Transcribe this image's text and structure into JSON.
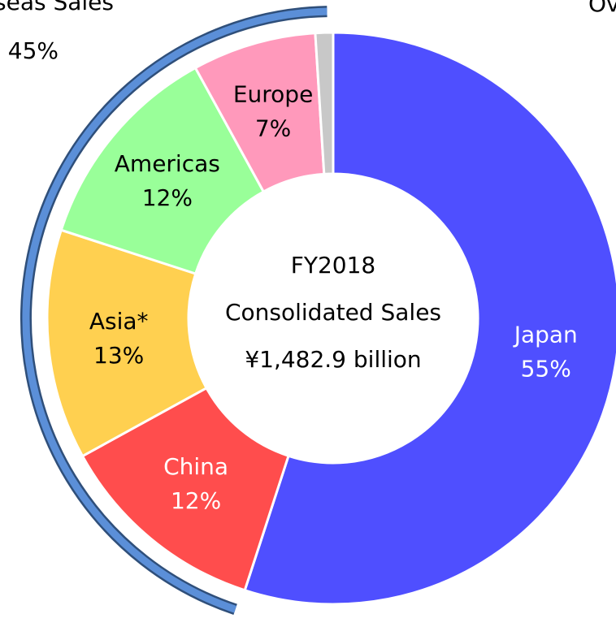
{
  "chart_data": {
    "type": "donut",
    "categories": [
      "Japan",
      "China",
      "Asia*",
      "Americas",
      "Europe",
      null
    ],
    "values": [
      55,
      12,
      13,
      12,
      7,
      1
    ],
    "value_labels": [
      "55%",
      "12%",
      "13%",
      "12%",
      "7%",
      null
    ],
    "colors": [
      "#4f4fff",
      "#ff4d4d",
      "#ffd050",
      "#99ff99",
      "#ff99bb",
      "#c8c8c8"
    ],
    "label_colors": [
      "#ffffff",
      "#ffffff",
      "#000000",
      "#000000",
      "#000000",
      "#000000"
    ],
    "center_text": [
      "FY2018",
      "Consolidated Sales",
      "¥1,482.9 billion"
    ],
    "bracket_label": "Overseas Sales",
    "bracket_value_label": "45%",
    "corner_text": "Ov"
  }
}
